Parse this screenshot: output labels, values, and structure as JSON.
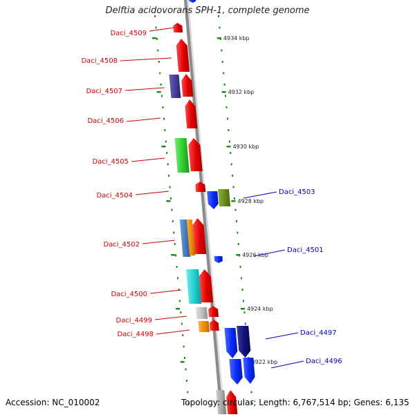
{
  "title": "Delftia acidovorans SPH-1, complete genome",
  "accession_text": "Accession: NC_010002",
  "topology_text": "Topology: circular; Length: 6,767,514 bp; Genes: 6,135",
  "colors": {
    "backbone": "#8a8a8a",
    "tick": "#1a8a1a",
    "forward_label": "#cc0000",
    "reverse_label": "#0000bb"
  },
  "scale_labels": [
    "4934 kbp",
    "4932 kbp",
    "4930 kbp",
    "4928 kbp",
    "4926 kbp",
    "4924 kbp",
    "4922 kbp"
  ],
  "forward_gene_labels": [
    "Daci_4509",
    "Daci_4508",
    "Daci_4507",
    "Daci_4506",
    "Daci_4505",
    "Daci_4504",
    "Daci_4502",
    "Daci_4500",
    "Daci_4499",
    "Daci_4498"
  ],
  "reverse_gene_labels": [
    "Daci_4503",
    "Daci_4501",
    "Daci_4497",
    "Daci_4496"
  ],
  "gene_block_colors": [
    "red",
    "slateblue",
    "limegreen",
    "steelblue",
    "orange",
    "cyan",
    "silver",
    "blue",
    "olive",
    "navy"
  ]
}
